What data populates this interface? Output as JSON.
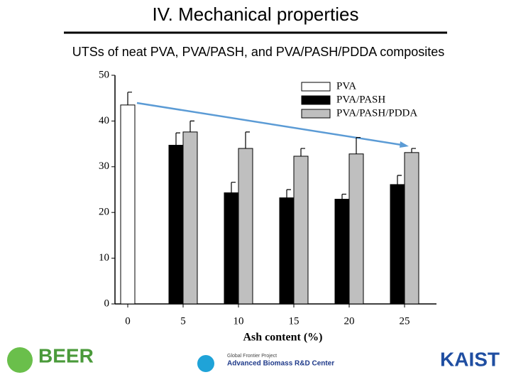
{
  "header": {
    "title": "IV. Mechanical properties",
    "subtitle": "UTSs of neat PVA, PVA/PASH, and PVA/PASH/PDDA composites"
  },
  "chart_data": {
    "type": "bar",
    "x_label": "Ash content (%)",
    "categories": [
      "0",
      "5",
      "10",
      "15",
      "20",
      "25"
    ],
    "series": [
      {
        "name": "PVA",
        "color": "#ffffff",
        "values": [
          43.5,
          null,
          null,
          null,
          null,
          null
        ],
        "errors": [
          2.8,
          null,
          null,
          null,
          null,
          null
        ]
      },
      {
        "name": "PVA/PASH",
        "color": "#000000",
        "values": [
          null,
          34.7,
          24.3,
          23.2,
          22.9,
          26.1
        ],
        "errors": [
          null,
          2.7,
          2.3,
          1.8,
          1.1,
          2.0
        ]
      },
      {
        "name": "PVA/PASH/PDDA",
        "color": "#bfbfbf",
        "values": [
          null,
          37.6,
          34.0,
          32.3,
          32.8,
          33.1
        ],
        "errors": [
          null,
          2.4,
          3.6,
          1.7,
          3.6,
          0.9
        ]
      }
    ],
    "ylim": [
      0,
      50
    ],
    "yticks": [
      0,
      10,
      20,
      30,
      40,
      50
    ],
    "legend": "upper-right"
  },
  "logos": {
    "left": "BEER",
    "center_top": "Global Frontier Project",
    "center": "Advanced Biomass R&D Center",
    "right": "KAIST"
  }
}
